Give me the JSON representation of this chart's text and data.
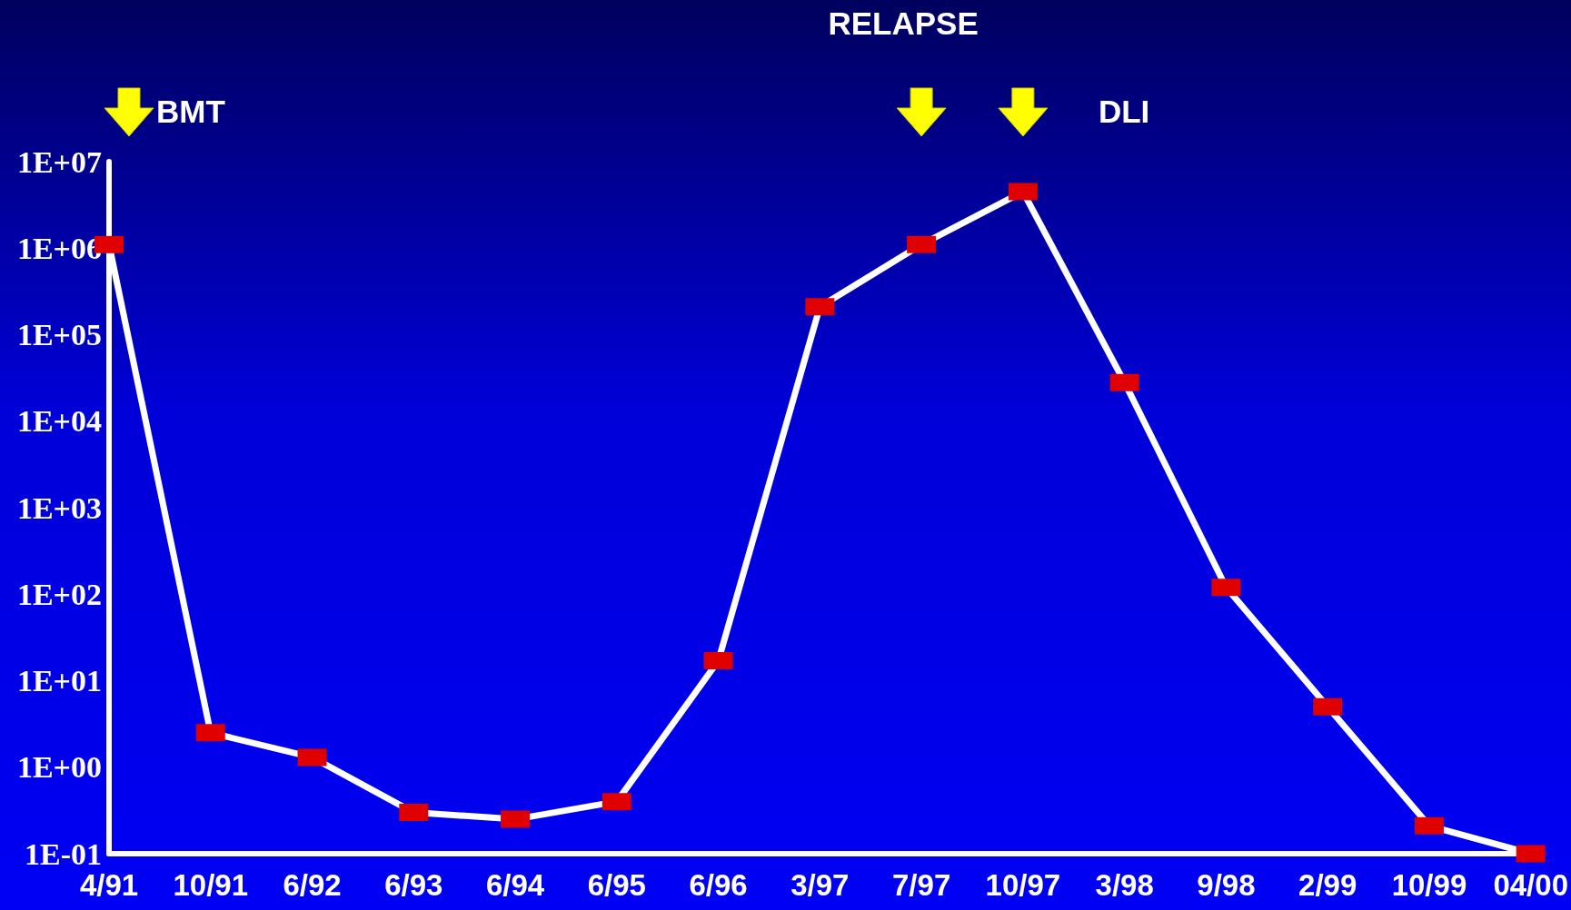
{
  "chart_data": {
    "type": "line",
    "log": "y",
    "categories": [
      "4/91",
      "10/91",
      "6/92",
      "6/93",
      "6/94",
      "6/95",
      "6/96",
      "3/97",
      "7/97",
      "10/97",
      "3/98",
      "9/98",
      "2/99",
      "10/99",
      "04/00"
    ],
    "series": [
      {
        "color": "#ffffff",
        "values": [
          1100000,
          2.5,
          1.3,
          0.3,
          0.25,
          0.4,
          17,
          210000,
          1100000,
          4500000,
          28000,
          120,
          5,
          0.21,
          0.1
        ]
      }
    ],
    "marker": "square",
    "line_style": "solid",
    "grid": false,
    "ylim": [
      0.1,
      10000000
    ],
    "yticks": [
      {
        "value": 0.1,
        "label": "1E-01"
      },
      {
        "value": 1,
        "label": "1E+00"
      },
      {
        "value": 10,
        "label": "1E+01"
      },
      {
        "value": 100,
        "label": "1E+02"
      },
      {
        "value": 1000,
        "label": "1E+03"
      },
      {
        "value": 10000,
        "label": "1E+04"
      },
      {
        "value": 100000,
        "label": "1E+05"
      },
      {
        "value": 1000000,
        "label": "1E+06"
      },
      {
        "value": 10000000,
        "label": "1E+07"
      }
    ],
    "annotations": [
      "BMT",
      "RELAPSE",
      "DLI"
    ]
  }
}
